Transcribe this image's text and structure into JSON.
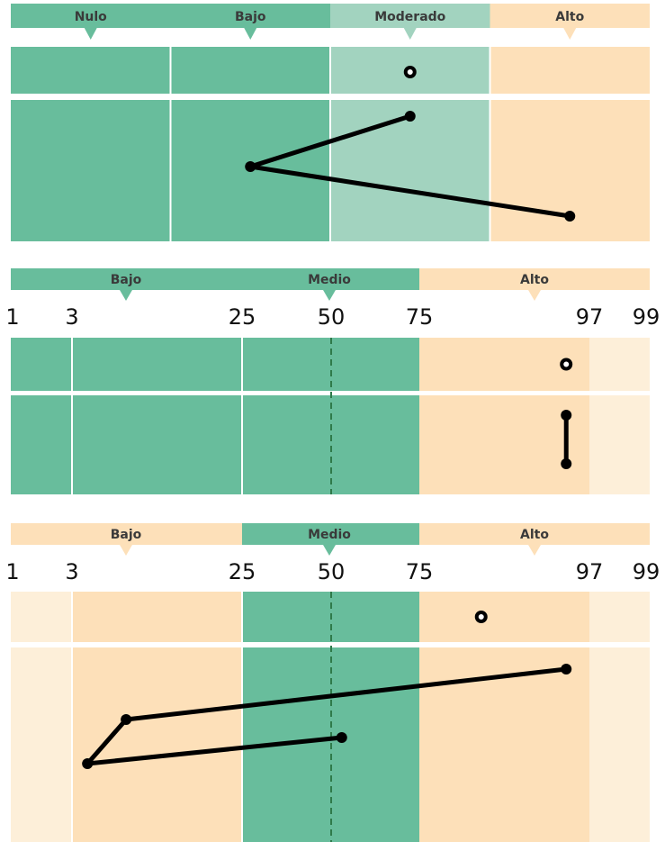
{
  "colors": {
    "green": "#68bd9c",
    "light_green": "#a2d3bf",
    "peach": "#fde0b9",
    "light_peach": "#fdefd9",
    "dashed": "#2f7a4a",
    "line": "#000000"
  },
  "chart_data": [
    {
      "type": "line",
      "bands": [
        {
          "label": "Nulo",
          "color": "green"
        },
        {
          "label": "Bajo",
          "color": "green"
        },
        {
          "label": "Moderado",
          "color": "light_green"
        },
        {
          "label": "Alto",
          "color": "peach"
        }
      ],
      "xlim": [
        0,
        4
      ],
      "single_point": {
        "x": 2.5
      },
      "series": [
        {
          "values": [
            {
              "x": 2.5,
              "row": 0
            },
            {
              "x": 1.5,
              "row": 1
            },
            {
              "x": 3.5,
              "row": 2
            }
          ]
        }
      ]
    },
    {
      "type": "line",
      "scale": "percentile",
      "tick_labels": [
        "1",
        "3",
        "25",
        "50",
        "75",
        "97",
        "99"
      ],
      "ticks": [
        1,
        3,
        25,
        50,
        75,
        97,
        99
      ],
      "xlim": [
        1,
        99
      ],
      "bands": [
        {
          "label": "Bajo",
          "from": 1,
          "to": 25,
          "color": "green"
        },
        {
          "label": "Medio",
          "from": 25,
          "to": 75,
          "color": "green"
        },
        {
          "label": "Alto",
          "from": 75,
          "to": 99,
          "color": "peach"
        }
      ],
      "single_point": {
        "x": 94
      },
      "series": [
        {
          "values": [
            {
              "x": 94,
              "row": 0
            },
            {
              "x": 94,
              "row": 1
            }
          ]
        }
      ]
    },
    {
      "type": "line",
      "scale": "percentile",
      "tick_labels": [
        "1",
        "3",
        "25",
        "50",
        "75",
        "97",
        "99"
      ],
      "ticks": [
        1,
        3,
        25,
        50,
        75,
        97,
        99
      ],
      "xlim": [
        1,
        99
      ],
      "bands": [
        {
          "label": "Bajo",
          "from": 1,
          "to": 25,
          "color": "peach"
        },
        {
          "label": "Medio",
          "from": 25,
          "to": 75,
          "color": "green"
        },
        {
          "label": "Alto",
          "from": 75,
          "to": 99,
          "color": "peach"
        }
      ],
      "single_point": {
        "x": 83
      },
      "series": [
        {
          "values": [
            {
              "x": 94,
              "row": 0
            },
            {
              "x": 10,
              "row": 1
            },
            {
              "x": 5,
              "row": 2
            },
            {
              "x": 53,
              "row": 3
            }
          ]
        }
      ]
    }
  ]
}
